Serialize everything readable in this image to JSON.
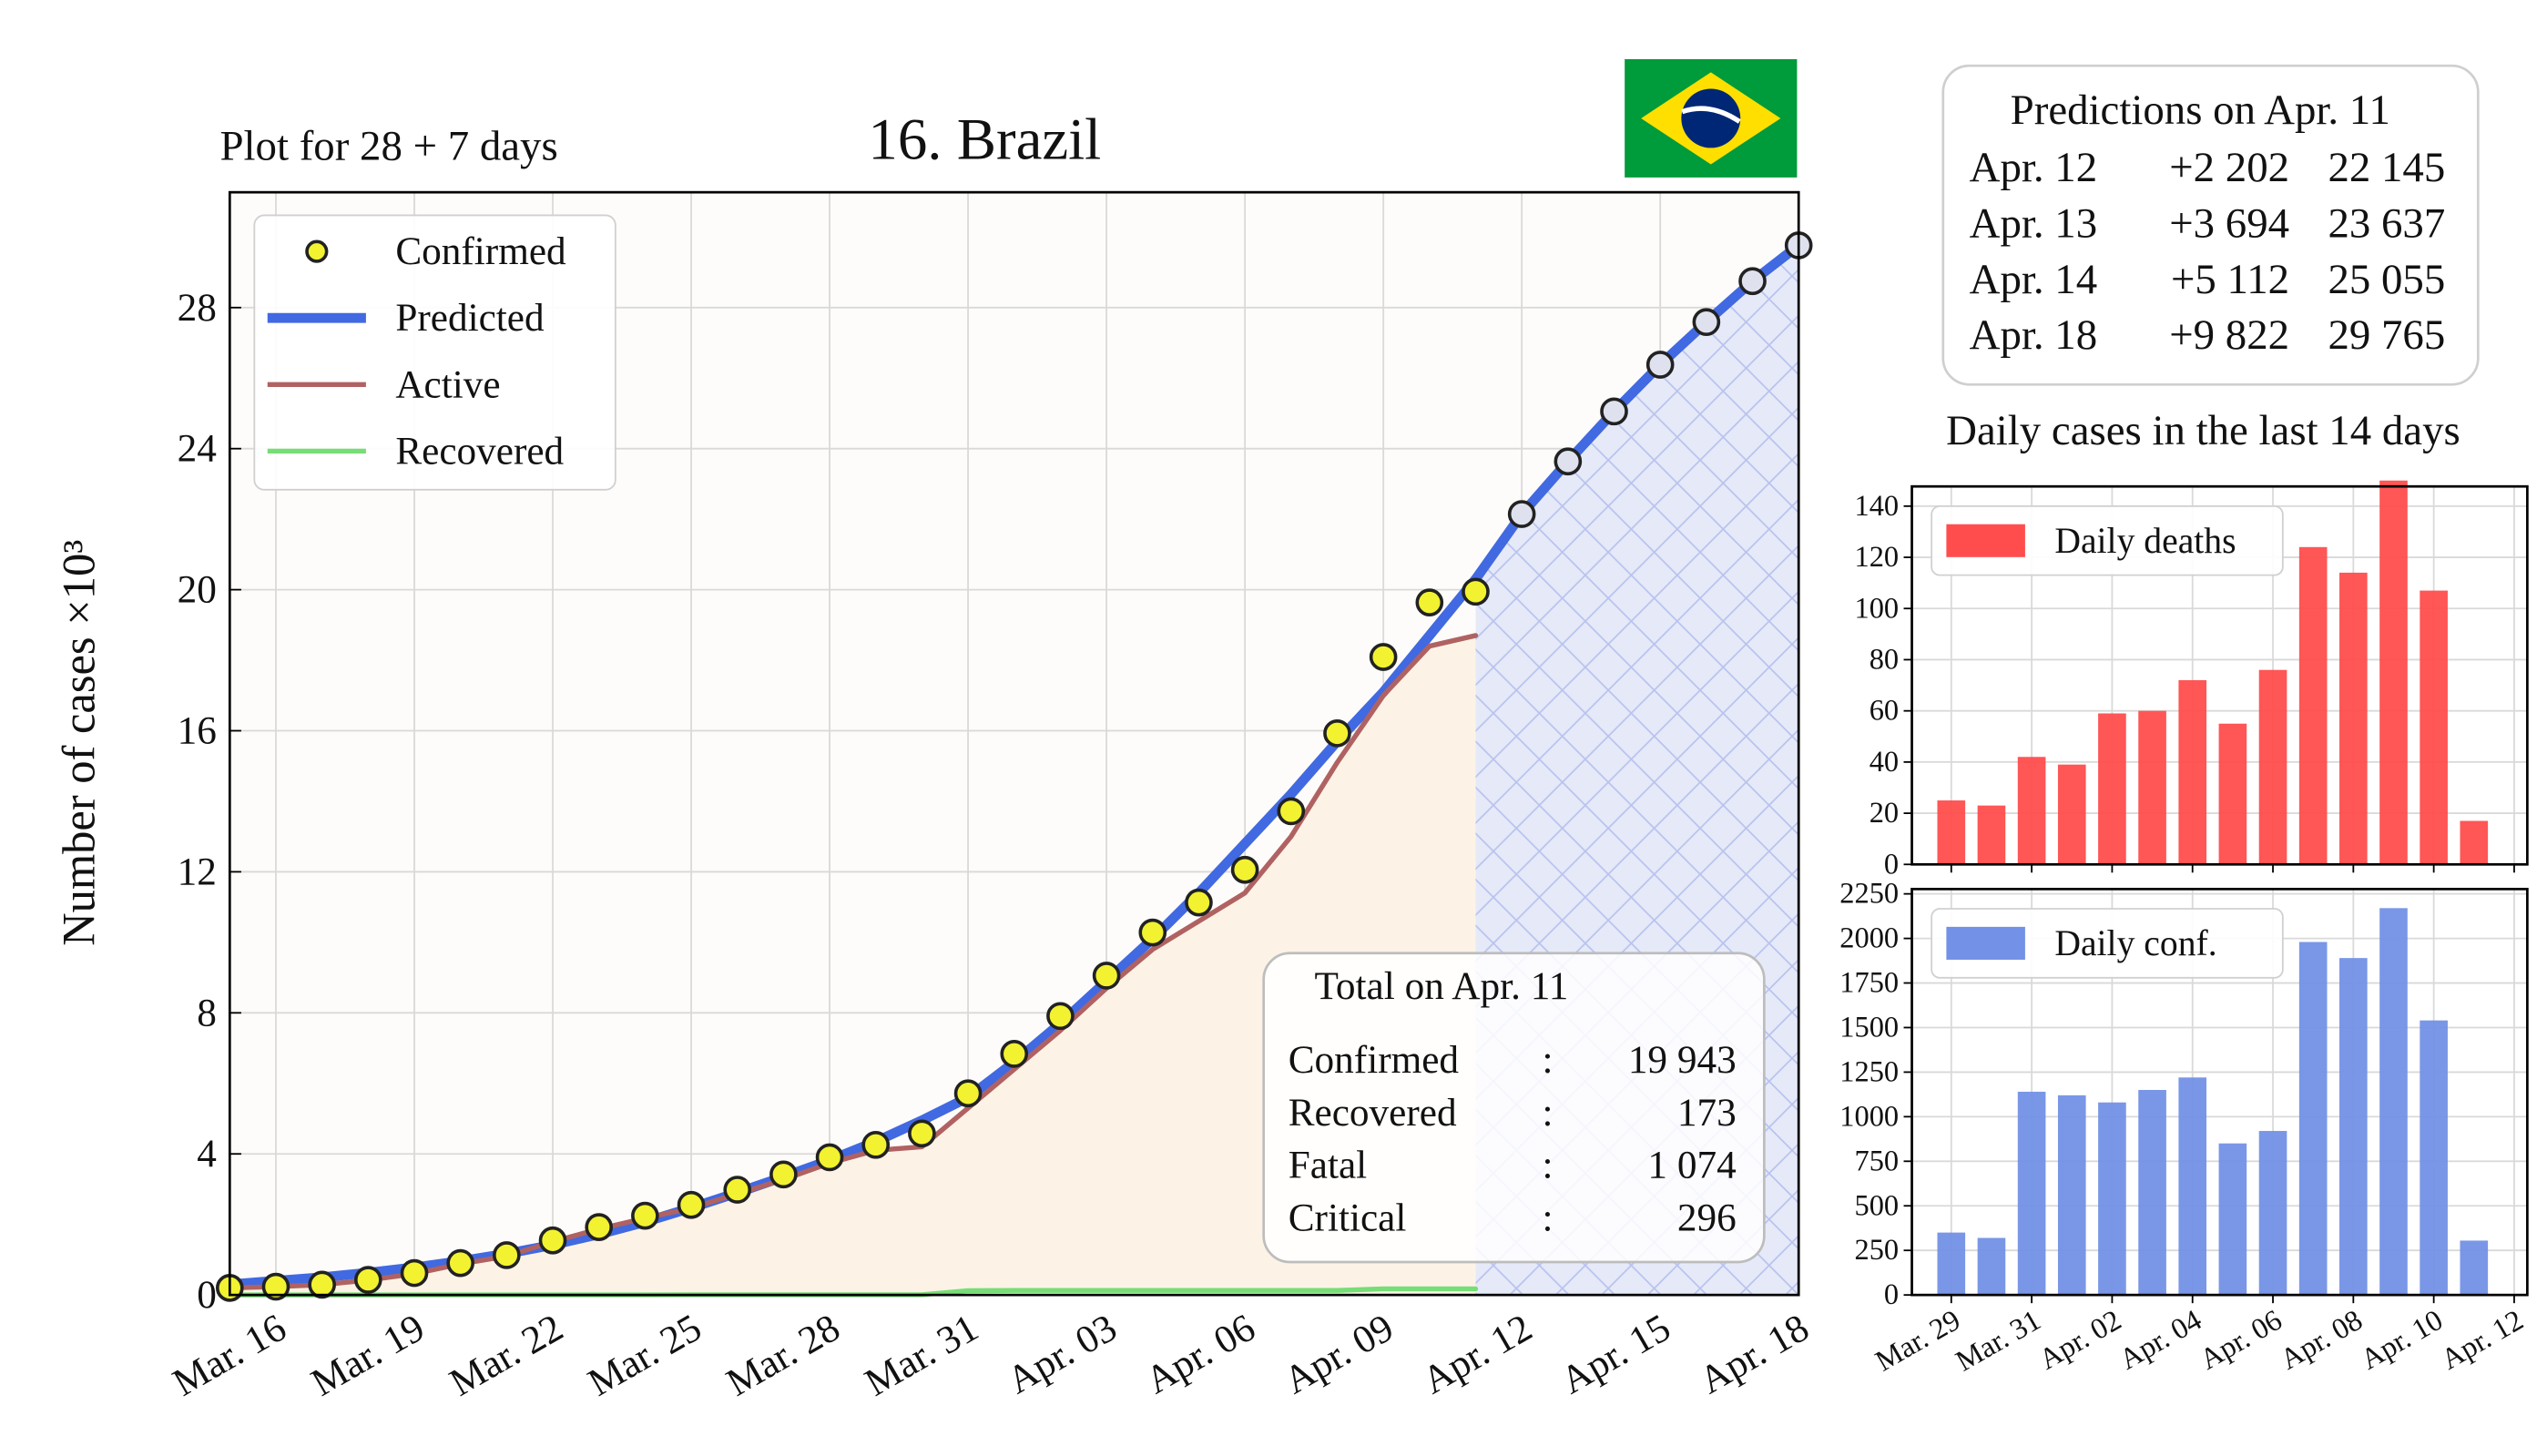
{
  "chart_data": [
    {
      "type": "line",
      "title": "16. Brazil",
      "subtitle": "Plot for 28 + 7 days",
      "ylabel": "Number of cases ×10³",
      "categories": [
        null,
        "Mar. 16",
        null,
        null,
        "Mar. 19",
        null,
        null,
        "Mar. 22",
        null,
        null,
        "Mar. 25",
        null,
        null,
        "Mar. 28",
        null,
        null,
        "Mar. 31",
        null,
        null,
        "Apr. 03",
        null,
        null,
        "Apr. 06",
        null,
        null,
        "Apr. 09",
        null,
        null,
        "Apr. 12",
        null,
        null,
        "Apr. 15",
        null,
        null,
        "Apr. 18"
      ],
      "series": [
        {
          "name": "Confirmed",
          "color": "#f2f230",
          "edgecolor": "#222222",
          "marker": "o",
          "values": [
            0.2,
            0.234,
            0.291,
            0.428,
            0.621,
            0.904,
            1.128,
            1.546,
            1.924,
            2.247,
            2.554,
            2.985,
            3.417,
            3.904,
            4.256,
            4.579,
            5.717,
            6.836,
            7.91,
            9.056,
            10.278,
            11.13,
            12.056,
            13.717,
            15.927,
            18.092,
            19.638,
            19.943,
            null,
            null,
            null,
            null,
            null,
            null,
            null
          ]
        },
        {
          "name": "Predicted",
          "color": "#4169e1",
          "linewidth": 6,
          "marker_color": "#dfe2ee",
          "values": [
            0.3,
            0.4,
            0.5,
            0.63,
            0.78,
            0.96,
            1.17,
            1.42,
            1.72,
            2.07,
            2.47,
            2.9,
            3.35,
            3.82,
            4.35,
            4.95,
            5.6,
            6.6,
            7.7,
            8.9,
            10.1,
            11.4,
            12.8,
            14.2,
            15.7,
            17.1,
            18.7,
            20.3,
            22.145,
            23.637,
            25.055,
            26.38,
            27.59,
            28.75,
            29.765
          ],
          "marker_values": [
            null,
            null,
            null,
            null,
            null,
            null,
            null,
            null,
            null,
            null,
            null,
            null,
            null,
            null,
            null,
            null,
            null,
            null,
            null,
            null,
            null,
            null,
            null,
            null,
            null,
            null,
            null,
            null,
            22.145,
            23.637,
            25.055,
            26.38,
            27.59,
            28.75,
            29.765
          ]
        },
        {
          "name": "Active",
          "color": "#b06262",
          "linewidth": 3,
          "area_color": "#fcf3e6",
          "values": [
            0.2,
            0.234,
            0.29,
            0.42,
            0.6,
            0.88,
            1.1,
            1.51,
            1.87,
            2.18,
            2.46,
            2.87,
            3.27,
            3.74,
            4.1,
            4.2,
            5.3,
            6.4,
            7.5,
            8.7,
            9.8,
            10.6,
            11.4,
            13.0,
            15.1,
            17.0,
            18.4,
            18.7,
            null,
            null,
            null,
            null,
            null,
            null,
            null
          ]
        },
        {
          "name": "Recovered",
          "color": "#77dd77",
          "linewidth": 3,
          "values": [
            0,
            0,
            0,
            0,
            0.002,
            0.002,
            0.002,
            0.002,
            0.002,
            0.002,
            0.006,
            0.006,
            0.006,
            0.006,
            0.006,
            0.006,
            0.12,
            0.127,
            0.127,
            0.127,
            0.127,
            0.127,
            0.127,
            0.127,
            0.127,
            0.173,
            0.173,
            0.173,
            null,
            null,
            null,
            null,
            null,
            null,
            null
          ]
        }
      ],
      "ylim": [
        0,
        31.27
      ],
      "yticks": [
        0,
        4,
        8,
        12,
        16,
        20,
        24,
        28
      ],
      "grid": true,
      "legend": "upper-left",
      "forecast_color": "#e6eaf8"
    },
    {
      "type": "bar",
      "title": "Daily cases in the last 14 days",
      "categories": [
        "Mar. 29",
        null,
        "Mar. 31",
        null,
        "Apr. 02",
        null,
        "Apr. 04",
        null,
        "Apr. 06",
        null,
        "Apr. 08",
        null,
        "Apr. 10",
        null,
        "Apr. 12"
      ],
      "series": [
        {
          "name": "Daily deaths",
          "color": "#ff4d4d",
          "values": [
            25,
            23,
            42,
            39,
            59,
            60,
            72,
            55,
            76,
            124,
            114,
            150,
            107,
            17,
            null
          ]
        }
      ],
      "ylim": [
        0,
        147.7
      ],
      "yticks": [
        0,
        20,
        40,
        60,
        80,
        100,
        120,
        140
      ],
      "grid": true,
      "legend": "upper-left"
    },
    {
      "type": "bar",
      "categories": [
        "Mar. 29",
        null,
        "Mar. 31",
        null,
        "Apr. 02",
        null,
        "Apr. 04",
        null,
        "Apr. 06",
        null,
        "Apr. 08",
        null,
        "Apr. 10",
        null,
        "Apr. 12"
      ],
      "series": [
        {
          "name": "Daily conf.",
          "color": "#7391e6",
          "values": [
            350,
            320,
            1140,
            1120,
            1080,
            1150,
            1220,
            850,
            920,
            1980,
            1890,
            2170,
            1540,
            305,
            null
          ]
        }
      ],
      "ylim": [
        0,
        2277
      ],
      "yticks": [
        0,
        250,
        500,
        750,
        1000,
        1250,
        1500,
        1750,
        2000,
        2250
      ],
      "grid": true,
      "legend": "upper-left"
    }
  ],
  "predictions": {
    "title": "Predictions on Apr. 11",
    "rows": [
      [
        "Apr. 12",
        "+2 202",
        "22 145"
      ],
      [
        "Apr. 13",
        "+3 694",
        "23 637"
      ],
      [
        "Apr. 14",
        "+5 112",
        "25 055"
      ],
      [
        "Apr. 18",
        "+9 822",
        "29 765"
      ]
    ]
  },
  "totals": {
    "title": "Total on Apr. 11",
    "separator": ":",
    "rows": [
      [
        "Confirmed",
        "19 943"
      ],
      [
        "Recovered",
        "173"
      ],
      [
        "Fatal",
        "1 074"
      ],
      [
        "Critical",
        "296"
      ]
    ]
  }
}
